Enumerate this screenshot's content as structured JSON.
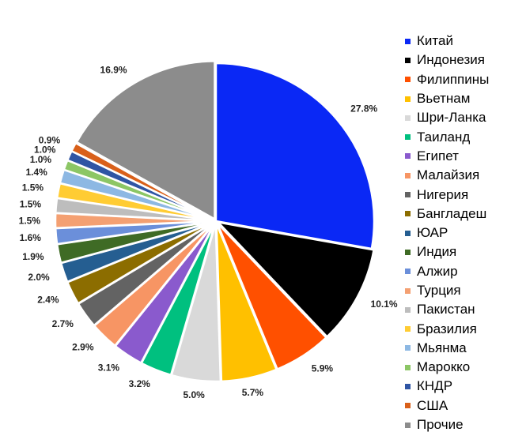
{
  "chart_data": {
    "type": "pie",
    "title": "",
    "start_angle": "12 o'clock, clockwise",
    "legend_position": "right",
    "slices": [
      {
        "label": "Китай",
        "value": 27.8,
        "text": "27.8%",
        "color": "#0a28f5"
      },
      {
        "label": "Индонезия",
        "value": 10.1,
        "text": "10.1%",
        "color": "#000000"
      },
      {
        "label": "Филиппины",
        "value": 5.9,
        "text": "5.9%",
        "color": "#ff5000"
      },
      {
        "label": "Вьетнам",
        "value": 5.7,
        "text": "5.7%",
        "color": "#ffc000"
      },
      {
        "label": "Шри-Ланка",
        "value": 5.0,
        "text": "5.0%",
        "color": "#d9d9d9"
      },
      {
        "label": "Таиланд",
        "value": 3.2,
        "text": "3.2%",
        "color": "#00c07f"
      },
      {
        "label": "Египет",
        "value": 3.1,
        "text": "3.1%",
        "color": "#8a5acd"
      },
      {
        "label": "Малайзия",
        "value": 2.9,
        "text": "2.9%",
        "color": "#f79564"
      },
      {
        "label": "Нигерия",
        "value": 2.7,
        "text": "2.7%",
        "color": "#636363"
      },
      {
        "label": "Бангладеш",
        "value": 2.4,
        "text": "2.4%",
        "color": "#8c6d00"
      },
      {
        "label": "ЮАР",
        "value": 2.0,
        "text": "2.0%",
        "color": "#255e91"
      },
      {
        "label": "Индия",
        "value": 1.9,
        "text": "1.9%",
        "color": "#3f6b25"
      },
      {
        "label": "Алжир",
        "value": 1.6,
        "text": "1.6%",
        "color": "#6b8fda"
      },
      {
        "label": "Турция",
        "value": 1.5,
        "text": "1.5%",
        "color": "#f4a072"
      },
      {
        "label": "Пакистан",
        "value": 1.5,
        "text": "1.5%",
        "color": "#bdbdbd"
      },
      {
        "label": "Бразилия",
        "value": 1.5,
        "text": "1.5%",
        "color": "#ffcc33"
      },
      {
        "label": "Мьянма",
        "value": 1.4,
        "text": "1.4%",
        "color": "#8db8e3"
      },
      {
        "label": "Марокко",
        "value": 1.0,
        "text": "1.0%",
        "color": "#8cc665"
      },
      {
        "label": "КНДР",
        "value": 1.0,
        "text": "1.0%",
        "color": "#2f55a4"
      },
      {
        "label": "США",
        "value": 0.9,
        "text": "0.9%",
        "color": "#d9601a"
      },
      {
        "label": "Прочие",
        "value": 16.9,
        "text": "16.9%",
        "color": "#8c8c8c"
      }
    ]
  }
}
